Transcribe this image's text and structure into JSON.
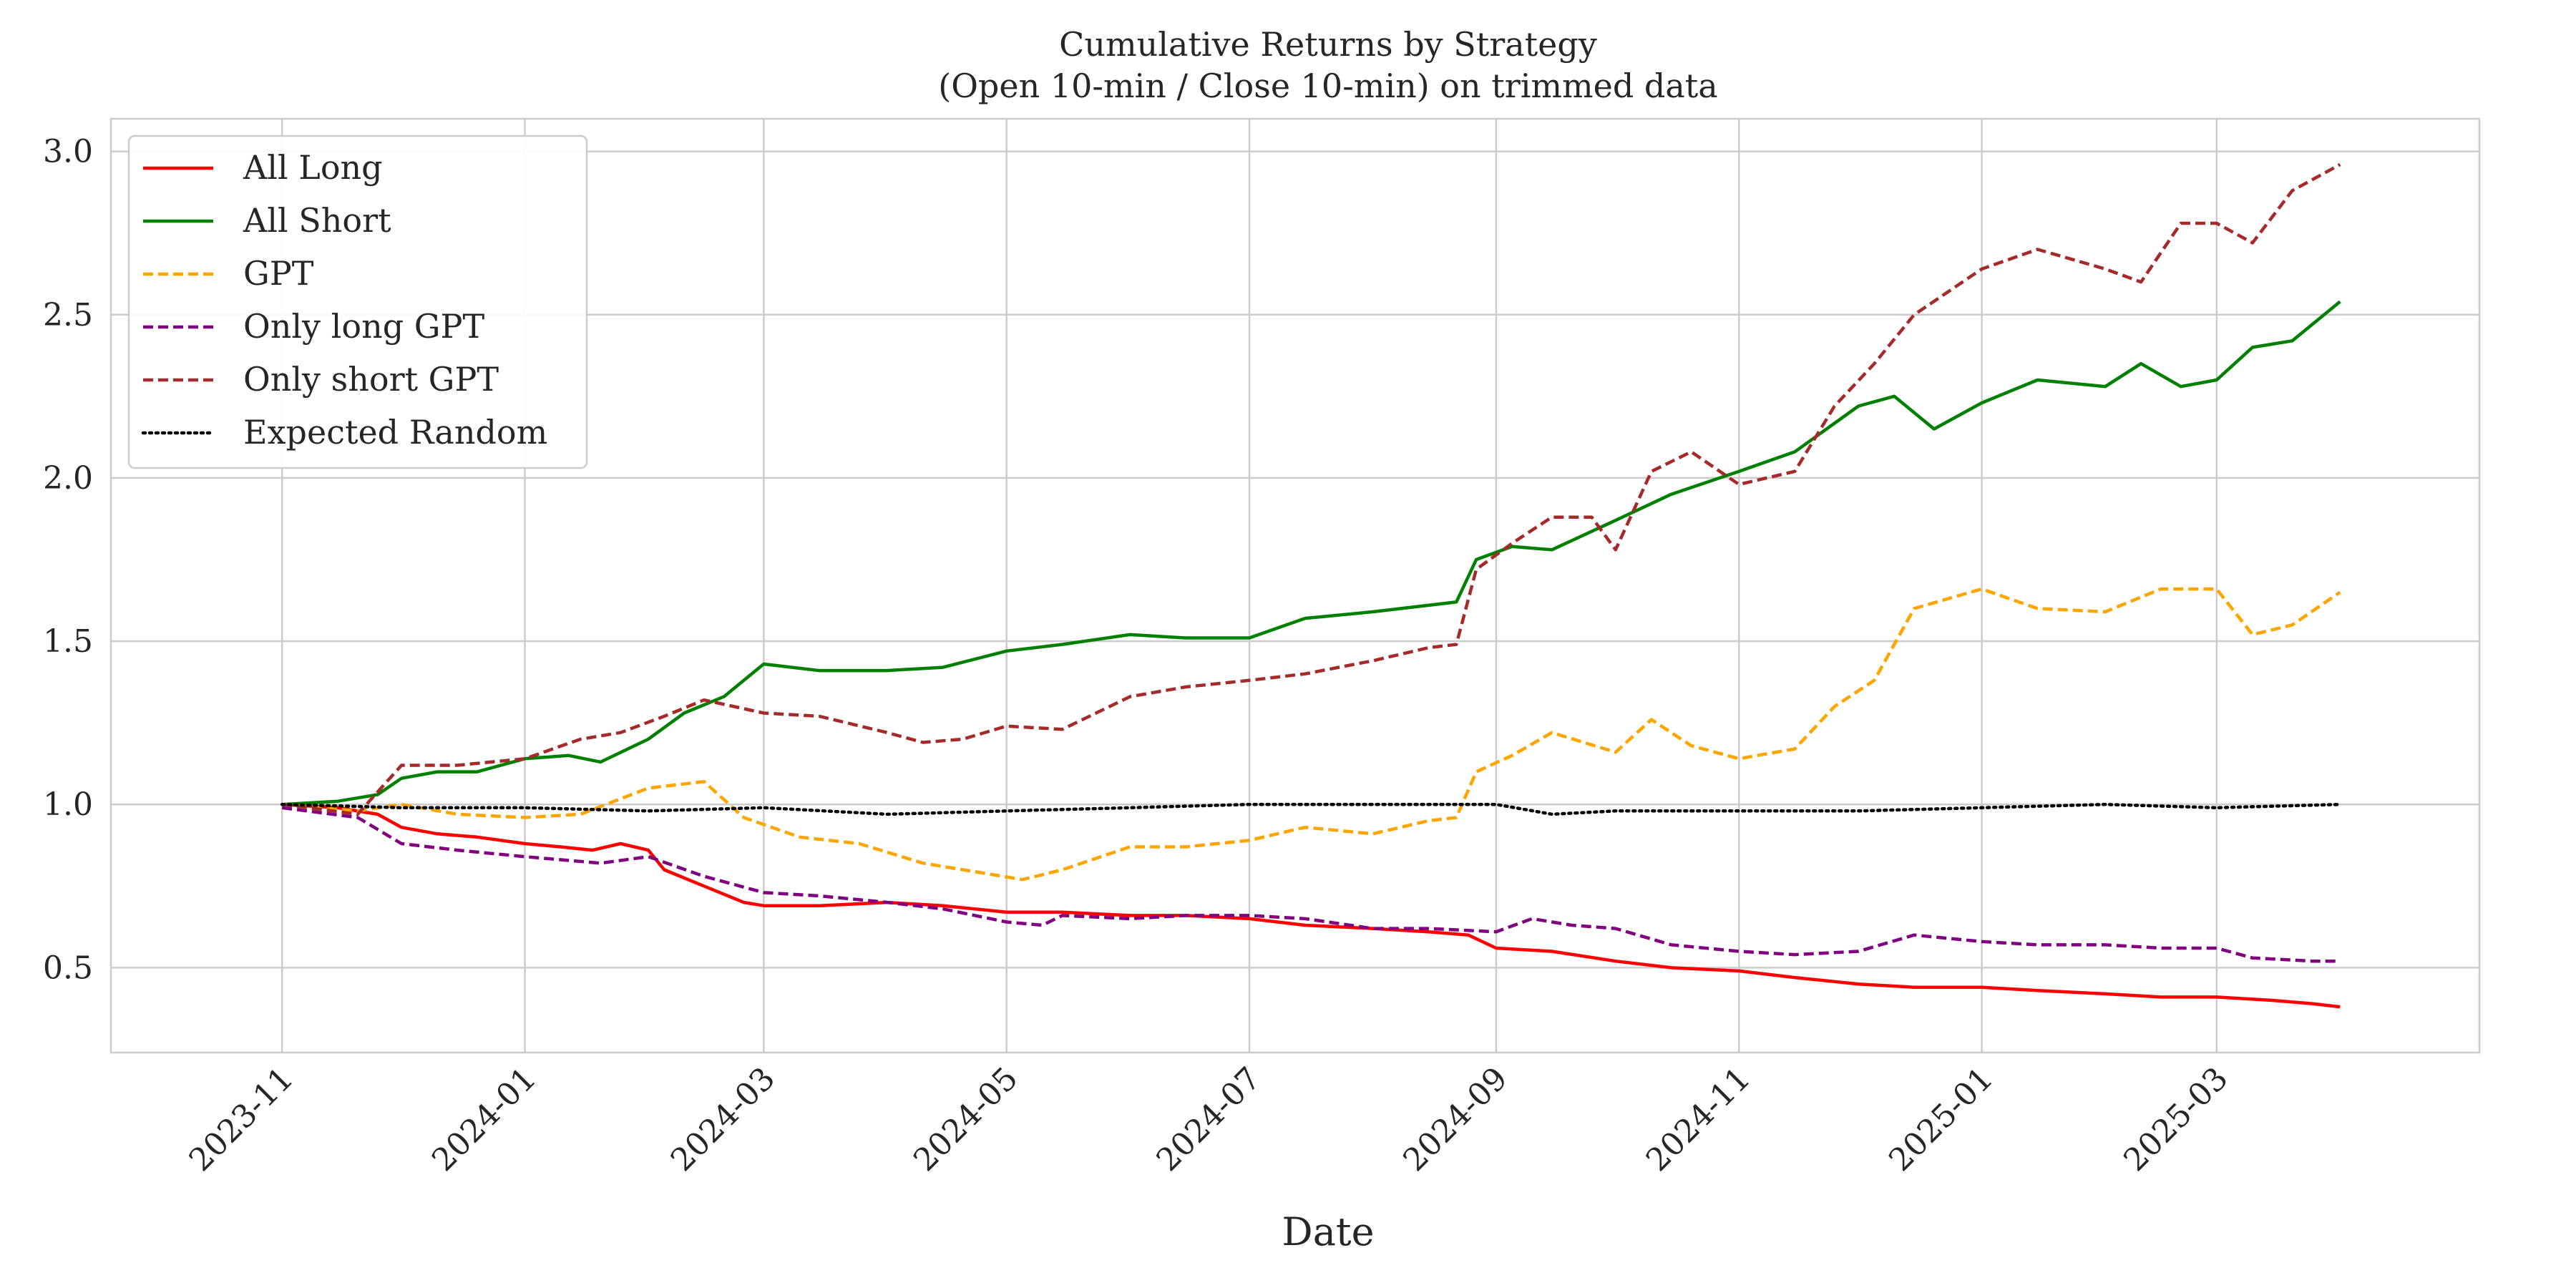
{
  "chart_data": {
    "type": "line",
    "title_line1": "Cumulative Returns by Strategy",
    "title_line2": "(Open 10-min / Close 10-min) on trimmed data",
    "xlabel": "Date",
    "ylabel": "",
    "xlim": [
      "2023-09-19",
      "2025-05-06"
    ],
    "ylim": [
      0.24,
      3.1
    ],
    "grid": true,
    "legend_position": "top-left",
    "x_ticks": [
      "2023-11",
      "2024-01",
      "2024-03",
      "2024-05",
      "2024-07",
      "2024-09",
      "2024-11",
      "2025-01",
      "2025-03"
    ],
    "y_ticks": [
      "0.5",
      "1.0",
      "1.5",
      "2.0",
      "2.5",
      "3.0"
    ],
    "y_tick_values": [
      0.5,
      1.0,
      1.5,
      2.0,
      2.5,
      3.0
    ],
    "series": [
      {
        "name": "All Long",
        "color": "#ff0000",
        "dash": "solid",
        "points": [
          [
            "2023-11-01",
            1.0
          ],
          [
            "2023-11-15",
            0.99
          ],
          [
            "2023-11-25",
            0.97
          ],
          [
            "2023-12-01",
            0.93
          ],
          [
            "2023-12-10",
            0.91
          ],
          [
            "2023-12-20",
            0.9
          ],
          [
            "2024-01-01",
            0.88
          ],
          [
            "2024-01-10",
            0.87
          ],
          [
            "2024-01-18",
            0.86
          ],
          [
            "2024-01-25",
            0.88
          ],
          [
            "2024-02-01",
            0.86
          ],
          [
            "2024-02-05",
            0.8
          ],
          [
            "2024-02-15",
            0.75
          ],
          [
            "2024-02-25",
            0.7
          ],
          [
            "2024-03-01",
            0.69
          ],
          [
            "2024-03-15",
            0.69
          ],
          [
            "2024-04-01",
            0.7
          ],
          [
            "2024-04-15",
            0.69
          ],
          [
            "2024-05-01",
            0.67
          ],
          [
            "2024-05-15",
            0.67
          ],
          [
            "2024-06-01",
            0.66
          ],
          [
            "2024-06-15",
            0.66
          ],
          [
            "2024-07-01",
            0.65
          ],
          [
            "2024-07-15",
            0.63
          ],
          [
            "2024-08-01",
            0.62
          ],
          [
            "2024-08-15",
            0.61
          ],
          [
            "2024-08-25",
            0.6
          ],
          [
            "2024-09-01",
            0.56
          ],
          [
            "2024-09-15",
            0.55
          ],
          [
            "2024-10-01",
            0.52
          ],
          [
            "2024-10-15",
            0.5
          ],
          [
            "2024-11-01",
            0.49
          ],
          [
            "2024-11-15",
            0.47
          ],
          [
            "2024-12-01",
            0.45
          ],
          [
            "2024-12-15",
            0.44
          ],
          [
            "2025-01-01",
            0.44
          ],
          [
            "2025-01-15",
            0.43
          ],
          [
            "2025-02-01",
            0.42
          ],
          [
            "2025-02-15",
            0.41
          ],
          [
            "2025-03-01",
            0.41
          ],
          [
            "2025-03-15",
            0.4
          ],
          [
            "2025-03-25",
            0.39
          ],
          [
            "2025-04-01",
            0.38
          ]
        ]
      },
      {
        "name": "All Short",
        "color": "#008000",
        "dash": "solid",
        "points": [
          [
            "2023-11-01",
            1.0
          ],
          [
            "2023-11-15",
            1.01
          ],
          [
            "2023-11-25",
            1.03
          ],
          [
            "2023-12-01",
            1.08
          ],
          [
            "2023-12-10",
            1.1
          ],
          [
            "2023-12-20",
            1.1
          ],
          [
            "2024-01-01",
            1.14
          ],
          [
            "2024-01-12",
            1.15
          ],
          [
            "2024-01-20",
            1.13
          ],
          [
            "2024-02-01",
            1.2
          ],
          [
            "2024-02-10",
            1.28
          ],
          [
            "2024-02-20",
            1.33
          ],
          [
            "2024-03-01",
            1.43
          ],
          [
            "2024-03-15",
            1.41
          ],
          [
            "2024-04-01",
            1.41
          ],
          [
            "2024-04-15",
            1.42
          ],
          [
            "2024-05-01",
            1.47
          ],
          [
            "2024-05-15",
            1.49
          ],
          [
            "2024-06-01",
            1.52
          ],
          [
            "2024-06-15",
            1.51
          ],
          [
            "2024-07-01",
            1.51
          ],
          [
            "2024-07-15",
            1.57
          ],
          [
            "2024-08-01",
            1.59
          ],
          [
            "2024-08-15",
            1.61
          ],
          [
            "2024-08-22",
            1.62
          ],
          [
            "2024-08-27",
            1.75
          ],
          [
            "2024-09-05",
            1.79
          ],
          [
            "2024-09-15",
            1.78
          ],
          [
            "2024-10-01",
            1.87
          ],
          [
            "2024-10-15",
            1.95
          ],
          [
            "2024-11-01",
            2.02
          ],
          [
            "2024-11-15",
            2.08
          ],
          [
            "2024-12-01",
            2.22
          ],
          [
            "2024-12-10",
            2.25
          ],
          [
            "2024-12-20",
            2.15
          ],
          [
            "2025-01-01",
            2.23
          ],
          [
            "2025-01-15",
            2.3
          ],
          [
            "2025-02-01",
            2.28
          ],
          [
            "2025-02-10",
            2.35
          ],
          [
            "2025-02-20",
            2.28
          ],
          [
            "2025-03-01",
            2.3
          ],
          [
            "2025-03-10",
            2.4
          ],
          [
            "2025-03-20",
            2.42
          ],
          [
            "2025-04-01",
            2.54
          ]
        ]
      },
      {
        "name": "GPT",
        "color": "#ffa500",
        "dash": "dashed",
        "points": [
          [
            "2023-11-01",
            1.0
          ],
          [
            "2023-11-20",
            0.98
          ],
          [
            "2023-12-01",
            1.0
          ],
          [
            "2023-12-15",
            0.97
          ],
          [
            "2024-01-01",
            0.96
          ],
          [
            "2024-01-15",
            0.97
          ],
          [
            "2024-02-01",
            1.05
          ],
          [
            "2024-02-15",
            1.07
          ],
          [
            "2024-02-25",
            0.96
          ],
          [
            "2024-03-10",
            0.9
          ],
          [
            "2024-03-25",
            0.88
          ],
          [
            "2024-04-10",
            0.82
          ],
          [
            "2024-04-25",
            0.79
          ],
          [
            "2024-05-05",
            0.77
          ],
          [
            "2024-05-15",
            0.8
          ],
          [
            "2024-06-01",
            0.87
          ],
          [
            "2024-06-15",
            0.87
          ],
          [
            "2024-07-01",
            0.89
          ],
          [
            "2024-07-15",
            0.93
          ],
          [
            "2024-08-01",
            0.91
          ],
          [
            "2024-08-15",
            0.95
          ],
          [
            "2024-08-22",
            0.96
          ],
          [
            "2024-08-27",
            1.1
          ],
          [
            "2024-09-05",
            1.15
          ],
          [
            "2024-09-15",
            1.22
          ],
          [
            "2024-10-01",
            1.16
          ],
          [
            "2024-10-10",
            1.26
          ],
          [
            "2024-10-20",
            1.18
          ],
          [
            "2024-11-01",
            1.14
          ],
          [
            "2024-11-15",
            1.17
          ],
          [
            "2024-11-25",
            1.3
          ],
          [
            "2024-12-05",
            1.38
          ],
          [
            "2024-12-15",
            1.6
          ],
          [
            "2025-01-01",
            1.66
          ],
          [
            "2025-01-15",
            1.6
          ],
          [
            "2025-02-01",
            1.59
          ],
          [
            "2025-02-15",
            1.66
          ],
          [
            "2025-03-01",
            1.66
          ],
          [
            "2025-03-10",
            1.52
          ],
          [
            "2025-03-20",
            1.55
          ],
          [
            "2025-04-01",
            1.65
          ]
        ]
      },
      {
        "name": "Only long GPT",
        "color": "#800080",
        "dash": "dashed",
        "points": [
          [
            "2023-11-01",
            0.99
          ],
          [
            "2023-11-20",
            0.96
          ],
          [
            "2023-12-01",
            0.88
          ],
          [
            "2023-12-15",
            0.86
          ],
          [
            "2024-01-01",
            0.84
          ],
          [
            "2024-01-20",
            0.82
          ],
          [
            "2024-02-01",
            0.84
          ],
          [
            "2024-02-15",
            0.78
          ],
          [
            "2024-03-01",
            0.73
          ],
          [
            "2024-03-15",
            0.72
          ],
          [
            "2024-04-01",
            0.7
          ],
          [
            "2024-04-15",
            0.68
          ],
          [
            "2024-05-01",
            0.64
          ],
          [
            "2024-05-10",
            0.63
          ],
          [
            "2024-05-15",
            0.66
          ],
          [
            "2024-06-01",
            0.65
          ],
          [
            "2024-06-15",
            0.66
          ],
          [
            "2024-07-01",
            0.66
          ],
          [
            "2024-07-15",
            0.65
          ],
          [
            "2024-08-01",
            0.62
          ],
          [
            "2024-08-15",
            0.62
          ],
          [
            "2024-09-01",
            0.61
          ],
          [
            "2024-09-10",
            0.65
          ],
          [
            "2024-09-20",
            0.63
          ],
          [
            "2024-10-01",
            0.62
          ],
          [
            "2024-10-15",
            0.57
          ],
          [
            "2024-11-01",
            0.55
          ],
          [
            "2024-11-15",
            0.54
          ],
          [
            "2024-12-01",
            0.55
          ],
          [
            "2024-12-15",
            0.6
          ],
          [
            "2025-01-01",
            0.58
          ],
          [
            "2025-01-15",
            0.57
          ],
          [
            "2025-02-01",
            0.57
          ],
          [
            "2025-02-15",
            0.56
          ],
          [
            "2025-03-01",
            0.56
          ],
          [
            "2025-03-10",
            0.53
          ],
          [
            "2025-03-25",
            0.52
          ],
          [
            "2025-04-01",
            0.52
          ]
        ]
      },
      {
        "name": "Only short GPT",
        "color": "#a52a2a",
        "dash": "dashed",
        "points": [
          [
            "2023-11-01",
            1.0
          ],
          [
            "2023-11-20",
            0.97
          ],
          [
            "2023-12-01",
            1.12
          ],
          [
            "2023-12-15",
            1.12
          ],
          [
            "2024-01-01",
            1.14
          ],
          [
            "2024-01-15",
            1.2
          ],
          [
            "2024-01-25",
            1.22
          ],
          [
            "2024-02-05",
            1.27
          ],
          [
            "2024-02-15",
            1.32
          ],
          [
            "2024-03-01",
            1.28
          ],
          [
            "2024-03-15",
            1.27
          ],
          [
            "2024-04-01",
            1.22
          ],
          [
            "2024-04-10",
            1.19
          ],
          [
            "2024-04-20",
            1.2
          ],
          [
            "2024-05-01",
            1.24
          ],
          [
            "2024-05-15",
            1.23
          ],
          [
            "2024-06-01",
            1.33
          ],
          [
            "2024-06-15",
            1.36
          ],
          [
            "2024-07-01",
            1.38
          ],
          [
            "2024-07-15",
            1.4
          ],
          [
            "2024-08-01",
            1.44
          ],
          [
            "2024-08-15",
            1.48
          ],
          [
            "2024-08-22",
            1.49
          ],
          [
            "2024-08-27",
            1.72
          ],
          [
            "2024-09-05",
            1.8
          ],
          [
            "2024-09-15",
            1.88
          ],
          [
            "2024-09-25",
            1.88
          ],
          [
            "2024-10-01",
            1.78
          ],
          [
            "2024-10-10",
            2.02
          ],
          [
            "2024-10-20",
            2.08
          ],
          [
            "2024-11-01",
            1.98
          ],
          [
            "2024-11-15",
            2.02
          ],
          [
            "2024-11-25",
            2.22
          ],
          [
            "2024-12-05",
            2.35
          ],
          [
            "2024-12-15",
            2.5
          ],
          [
            "2025-01-01",
            2.64
          ],
          [
            "2025-01-15",
            2.7
          ],
          [
            "2025-02-01",
            2.64
          ],
          [
            "2025-02-10",
            2.6
          ],
          [
            "2025-02-20",
            2.78
          ],
          [
            "2025-03-01",
            2.78
          ],
          [
            "2025-03-10",
            2.72
          ],
          [
            "2025-03-20",
            2.88
          ],
          [
            "2025-04-01",
            2.96
          ]
        ]
      },
      {
        "name": "Expected Random",
        "color": "#000000",
        "dash": "dotted",
        "points": [
          [
            "2023-11-01",
            1.0
          ],
          [
            "2023-12-01",
            0.99
          ],
          [
            "2024-01-01",
            0.99
          ],
          [
            "2024-02-01",
            0.98
          ],
          [
            "2024-03-01",
            0.99
          ],
          [
            "2024-04-01",
            0.97
          ],
          [
            "2024-05-01",
            0.98
          ],
          [
            "2024-06-01",
            0.99
          ],
          [
            "2024-07-01",
            1.0
          ],
          [
            "2024-08-01",
            1.0
          ],
          [
            "2024-09-01",
            1.0
          ],
          [
            "2024-09-15",
            0.97
          ],
          [
            "2024-10-01",
            0.98
          ],
          [
            "2024-11-01",
            0.98
          ],
          [
            "2024-12-01",
            0.98
          ],
          [
            "2025-01-01",
            0.99
          ],
          [
            "2025-02-01",
            1.0
          ],
          [
            "2025-03-01",
            0.99
          ],
          [
            "2025-04-01",
            1.0
          ]
        ]
      }
    ]
  }
}
